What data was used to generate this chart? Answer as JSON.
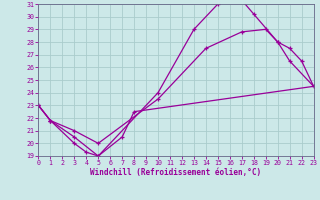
{
  "xlabel": "Windchill (Refroidissement éolien,°C)",
  "xlim": [
    0,
    23
  ],
  "ylim": [
    19,
    31
  ],
  "xticks": [
    0,
    1,
    2,
    3,
    4,
    5,
    6,
    7,
    8,
    9,
    10,
    11,
    12,
    13,
    14,
    15,
    16,
    17,
    18,
    19,
    20,
    21,
    22,
    23
  ],
  "yticks": [
    19,
    20,
    21,
    22,
    23,
    24,
    25,
    26,
    27,
    28,
    29,
    30,
    31
  ],
  "bg_color": "#cce8e8",
  "line_color": "#990099",
  "grid_color": "#aacccc",
  "line1_x": [
    0,
    1,
    3,
    4,
    5,
    7,
    8,
    23
  ],
  "line1_y": [
    23.0,
    21.8,
    20.0,
    19.3,
    19.0,
    20.5,
    22.5,
    24.5
  ],
  "line2_x": [
    0,
    1,
    3,
    5,
    10,
    13,
    15,
    16,
    17,
    18,
    20,
    21,
    23
  ],
  "line2_y": [
    23.0,
    21.8,
    20.5,
    19.0,
    24.0,
    29.0,
    31.0,
    31.3,
    31.3,
    30.2,
    28.0,
    26.5,
    24.5
  ],
  "line3_x": [
    0,
    1,
    3,
    5,
    10,
    14,
    17,
    19,
    20,
    21,
    22,
    23
  ],
  "line3_y": [
    23.0,
    21.8,
    21.0,
    20.0,
    23.5,
    27.5,
    28.8,
    29.0,
    28.0,
    27.5,
    26.5,
    24.5
  ]
}
